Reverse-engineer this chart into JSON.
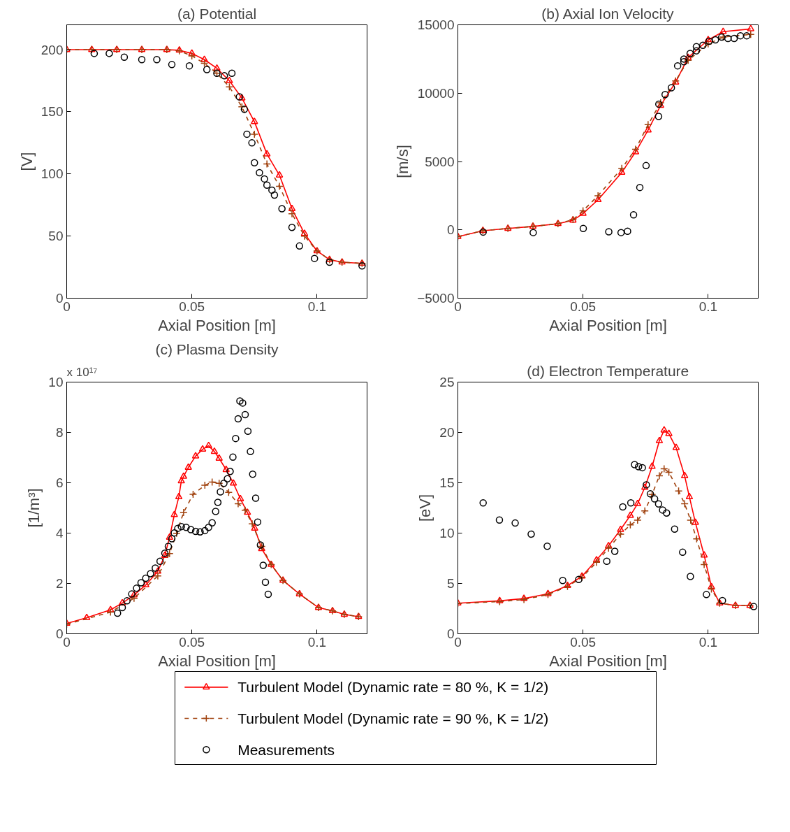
{
  "chart_data": [
    {
      "type": "line",
      "title": "(a) Potential",
      "xlabel": "Axial Position [m]",
      "ylabel": "[V]",
      "xlim": [
        0,
        0.12
      ],
      "xticks": [
        0,
        0.05,
        0.1
      ],
      "ylim": [
        0,
        220
      ],
      "yticks": [
        0,
        50,
        100,
        150,
        200
      ],
      "legend": "bottom",
      "series": [
        {
          "name": "Turbulent Model (Dynamic rate = 80 %, K = 1/2)",
          "color": "#ff0000",
          "marker": "triangle",
          "line_style": "solid",
          "x": [
            0,
            0.01,
            0.02,
            0.03,
            0.04,
            0.045,
            0.05,
            0.055,
            0.06,
            0.065,
            0.07,
            0.075,
            0.08,
            0.085,
            0.09,
            0.095,
            0.1,
            0.105,
            0.11,
            0.118
          ],
          "values": [
            200,
            200,
            200,
            200,
            200,
            199.5,
            197,
            192,
            185,
            175,
            161,
            142,
            116,
            99,
            72,
            52,
            38,
            31,
            29,
            28
          ]
        },
        {
          "name": "Turbulent Model (Dynamic rate = 90 %, K = 1/2)",
          "color": "#a0410d",
          "marker": "cross",
          "line_style": "dashed",
          "x": [
            0,
            0.01,
            0.02,
            0.03,
            0.04,
            0.045,
            0.05,
            0.055,
            0.06,
            0.065,
            0.07,
            0.075,
            0.08,
            0.085,
            0.09,
            0.095,
            0.1,
            0.105,
            0.11,
            0.118
          ],
          "values": [
            200,
            200,
            200,
            200,
            200,
            199,
            195,
            189,
            181,
            170,
            154,
            132,
            108,
            90,
            68,
            50,
            38,
            31,
            29,
            28
          ]
        },
        {
          "name": "Measurements",
          "type": "scatter",
          "color": "#000000",
          "marker": "circle",
          "x": [
            0.011,
            0.017,
            0.023,
            0.03,
            0.036,
            0.042,
            0.049,
            0.056,
            0.06,
            0.063,
            0.066,
            0.069,
            0.071,
            0.072,
            0.074,
            0.075,
            0.077,
            0.079,
            0.08,
            0.082,
            0.083,
            0.086,
            0.09,
            0.093,
            0.099,
            0.105,
            0.118
          ],
          "values": [
            197,
            197,
            194,
            192,
            192,
            188,
            187,
            184,
            181,
            179,
            181,
            162,
            152,
            132,
            125,
            109,
            101,
            96,
            91,
            87,
            83,
            72,
            57,
            42,
            32,
            29,
            26
          ]
        }
      ]
    },
    {
      "type": "line",
      "title": "(b) Axial Ion Velocity",
      "xlabel": "Axial Position [m]",
      "ylabel": "[m/s]",
      "xlim": [
        0,
        0.12
      ],
      "xticks": [
        0,
        0.05,
        0.1
      ],
      "ylim": [
        -5000,
        15000
      ],
      "yticks": [
        {
          "value": -5000,
          "label": "−5000"
        },
        0,
        5000,
        10000,
        15000
      ],
      "series": [
        {
          "color": "#ff0000",
          "marker": "triangle",
          "line_style": "solid",
          "x": [
            0,
            0.01,
            0.02,
            0.03,
            0.04,
            0.046,
            0.05,
            0.056,
            0.0655,
            0.071,
            0.076,
            0.081,
            0.087,
            0.092,
            0.1,
            0.106,
            0.117
          ],
          "values": [
            -500,
            -60,
            100,
            250,
            450,
            700,
            1200,
            2200,
            4200,
            5700,
            7300,
            9100,
            10800,
            12600,
            13900,
            14500,
            14700
          ]
        },
        {
          "color": "#a0410d",
          "marker": "cross",
          "line_style": "dashed",
          "x": [
            0,
            0.01,
            0.02,
            0.03,
            0.04,
            0.046,
            0.05,
            0.056,
            0.0655,
            0.071,
            0.076,
            0.081,
            0.087,
            0.092,
            0.1,
            0.106,
            0.117
          ],
          "values": [
            -500,
            -60,
            100,
            250,
            450,
            750,
            1400,
            2500,
            4500,
            5900,
            7700,
            9300,
            10900,
            12400,
            13600,
            14100,
            14300
          ]
        },
        {
          "type": "scatter",
          "color": "#000000",
          "marker": "circle",
          "x": [
            0.0101,
            0.0301,
            0.0501,
            0.0603,
            0.0652,
            0.0678,
            0.0702,
            0.0727,
            0.0752,
            0.0802,
            0.0803,
            0.0828,
            0.0853,
            0.0878,
            0.0903,
            0.0903,
            0.0928,
            0.0953,
            0.0953,
            0.0979,
            0.1004,
            0.1029,
            0.1054,
            0.1079,
            0.1104,
            0.1129,
            0.1154
          ],
          "values": [
            -160,
            -200,
            100,
            -140,
            -200,
            -100,
            1100,
            3100,
            4700,
            8300,
            9200,
            9900,
            10400,
            12000,
            12500,
            12300,
            12900,
            13400,
            13100,
            13500,
            13800,
            13900,
            14100,
            14000,
            14000,
            14200,
            14200
          ]
        }
      ]
    },
    {
      "type": "line",
      "title": "(c) Plasma Density",
      "xlabel": "Axial Position [m]",
      "ylabel": "[1/m³]",
      "annotations": [
        "x 10¹⁷"
      ],
      "xlim": [
        0,
        0.12
      ],
      "xticks": [
        0,
        0.05,
        0.1
      ],
      "ylim": [
        0,
        10
      ],
      "yticks": [
        0,
        2,
        4,
        6,
        8,
        10
      ],
      "series": [
        {
          "color": "#ff0000",
          "marker": "triangle",
          "line_style": "solid",
          "x": [
            0,
            0.008,
            0.0175,
            0.0222,
            0.0269,
            0.0316,
            0.0364,
            0.0392,
            0.0411,
            0.043,
            0.0448,
            0.0458,
            0.0467,
            0.0486,
            0.0515,
            0.0543,
            0.0567,
            0.059,
            0.0609,
            0.0637,
            0.0666,
            0.0694,
            0.0722,
            0.0751,
            0.0779,
            0.0817,
            0.0864,
            0.093,
            0.1006,
            0.1062,
            0.1109,
            0.1166
          ],
          "values": [
            0.41,
            0.64,
            0.95,
            1.22,
            1.54,
            1.94,
            2.48,
            3.11,
            3.83,
            4.73,
            5.44,
            6.07,
            6.25,
            6.61,
            7.06,
            7.33,
            7.47,
            7.24,
            6.97,
            6.52,
            5.98,
            5.36,
            4.82,
            4.19,
            3.38,
            2.75,
            2.12,
            1.58,
            1.04,
            0.91,
            0.77,
            0.68
          ]
        },
        {
          "color": "#a0410d",
          "marker": "cross",
          "line_style": "dashed",
          "x": [
            0,
            0.0175,
            0.0269,
            0.0364,
            0.0411,
            0.0439,
            0.0467,
            0.0505,
            0.0552,
            0.0581,
            0.0609,
            0.0647,
            0.0685,
            0.0713,
            0.0741,
            0.0779,
            0.0817,
            0.0864,
            0.093,
            0.1006,
            0.1062,
            0.1109,
            0.1166
          ],
          "values": [
            0.38,
            0.86,
            1.41,
            2.3,
            3.19,
            3.99,
            4.82,
            5.54,
            5.9,
            6.03,
            5.98,
            5.62,
            5.17,
            4.91,
            4.37,
            3.47,
            2.75,
            2.12,
            1.58,
            1.04,
            0.91,
            0.77,
            0.68
          ]
        },
        {
          "type": "scatter",
          "color": "#000000",
          "marker": "circle",
          "x": [
            0.0203,
            0.0222,
            0.0241,
            0.026,
            0.0279,
            0.0297,
            0.0316,
            0.0335,
            0.0354,
            0.0373,
            0.0392,
            0.0406,
            0.042,
            0.043,
            0.0444,
            0.0458,
            0.0477,
            0.0496,
            0.0515,
            0.0533,
            0.0552,
            0.0567,
            0.0581,
            0.0595,
            0.0604,
            0.0614,
            0.0628,
            0.0642,
            0.0653,
            0.0664,
            0.0675,
            0.0685,
            0.0692,
            0.0703,
            0.0713,
            0.0724,
            0.0734,
            0.0743,
            0.0755,
            0.0763,
            0.0774,
            0.0785,
            0.0794,
            0.0805
          ],
          "values": [
            0.82,
            1.04,
            1.31,
            1.58,
            1.81,
            2.03,
            2.21,
            2.39,
            2.61,
            2.88,
            3.2,
            3.47,
            3.78,
            4.01,
            4.19,
            4.26,
            4.23,
            4.14,
            4.07,
            4.05,
            4.1,
            4.23,
            4.41,
            4.86,
            5.22,
            5.64,
            5.98,
            6.16,
            6.45,
            7.02,
            7.76,
            8.54,
            9.25,
            9.17,
            8.71,
            8.05,
            7.24,
            6.34,
            5.39,
            4.44,
            3.53,
            2.72,
            2.05,
            1.57
          ]
        }
      ]
    },
    {
      "type": "line",
      "title": "(d) Electron Temperature",
      "xlabel": "Axial Position [m]",
      "ylabel": "[eV]",
      "xlim": [
        0,
        0.12
      ],
      "xticks": [
        0,
        0.05,
        0.1
      ],
      "ylim": [
        0,
        25
      ],
      "yticks": [
        0,
        5,
        10,
        15,
        20,
        25
      ],
      "series": [
        {
          "color": "#ff0000",
          "marker": "triangle",
          "line_style": "solid",
          "x": [
            0,
            0.0167,
            0.0264,
            0.036,
            0.0438,
            0.0496,
            0.0554,
            0.0602,
            0.065,
            0.0689,
            0.0718,
            0.0747,
            0.0776,
            0.0805,
            0.0824,
            0.0843,
            0.0872,
            0.0906,
            0.0925,
            0.0949,
            0.0984,
            0.1013,
            0.1046,
            0.1109,
            0.1167
          ],
          "values": [
            3.04,
            3.27,
            3.5,
            3.97,
            4.78,
            5.71,
            7.33,
            8.73,
            10.35,
            11.75,
            12.91,
            14.53,
            16.62,
            19.17,
            20.22,
            19.87,
            18.48,
            15.69,
            13.6,
            11.05,
            7.8,
            4.67,
            3.04,
            2.81,
            2.81
          ]
        },
        {
          "color": "#a0410d",
          "marker": "cross",
          "line_style": "dashed",
          "x": [
            0,
            0.0167,
            0.0264,
            0.036,
            0.0438,
            0.0496,
            0.0554,
            0.0602,
            0.065,
            0.0689,
            0.0718,
            0.0747,
            0.0776,
            0.0805,
            0.0824,
            0.0843,
            0.0882,
            0.0906,
            0.093,
            0.0954,
            0.0984,
            0.1013,
            0.1046,
            0.1109,
            0.1167
          ],
          "values": [
            3.0,
            3.2,
            3.4,
            3.9,
            4.7,
            5.6,
            7.1,
            8.5,
            9.89,
            10.82,
            11.28,
            12.21,
            13.84,
            15.69,
            16.39,
            16.04,
            14.18,
            12.91,
            11.28,
            9.42,
            6.87,
            4.44,
            3.04,
            2.81,
            2.81
          ]
        },
        {
          "type": "scatter",
          "color": "#000000",
          "marker": "circle",
          "x": [
            0.0101,
            0.0166,
            0.0229,
            0.0293,
            0.0357,
            0.0419,
            0.0483,
            0.0595,
            0.0627,
            0.0659,
            0.0691,
            0.0706,
            0.0722,
            0.0737,
            0.0753,
            0.0769,
            0.0786,
            0.0802,
            0.0818,
            0.0834,
            0.0866,
            0.0898,
            0.0929,
            0.0993,
            0.1057,
            0.1182
          ],
          "values": [
            13.0,
            11.3,
            11.0,
            9.9,
            8.7,
            5.3,
            5.4,
            7.2,
            8.2,
            12.6,
            13.0,
            16.8,
            16.6,
            16.5,
            14.8,
            13.9,
            13.4,
            12.9,
            12.3,
            12.0,
            10.4,
            8.1,
            5.7,
            3.9,
            3.3,
            2.7
          ]
        }
      ]
    }
  ]
}
